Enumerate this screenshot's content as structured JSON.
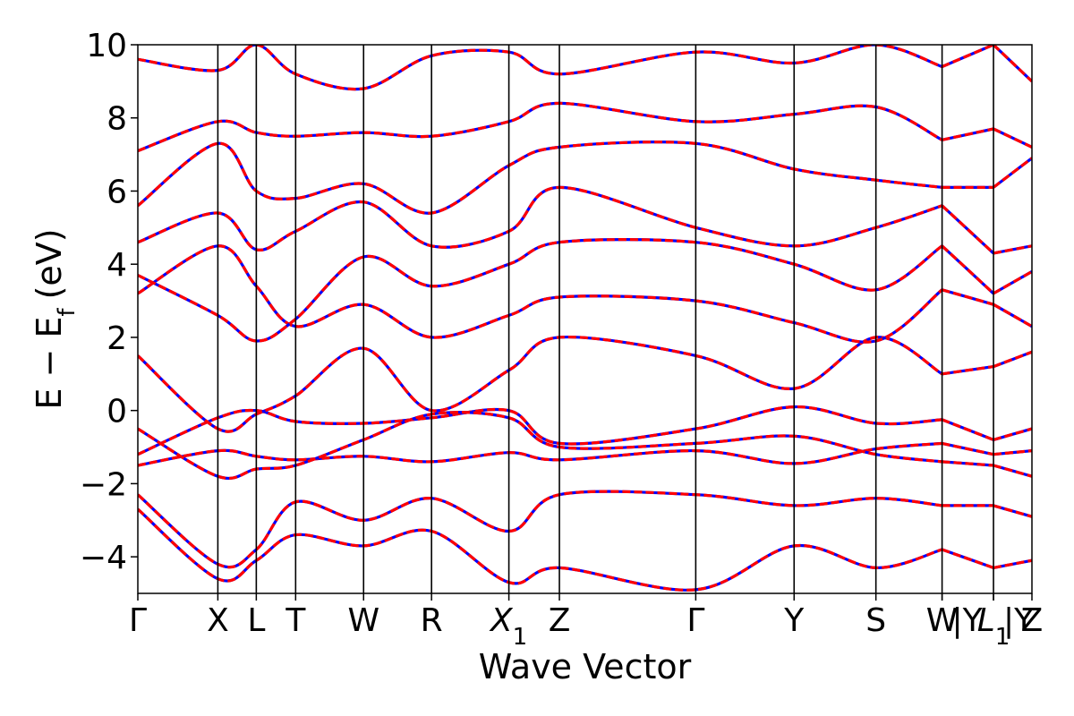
{
  "chart_data": {
    "type": "line",
    "title": "",
    "xlabel": "Wave Vector",
    "ylabel": "E − E",
    "ylabel_subscript": "f",
    "ylabel_unit": "(eV)",
    "ylim": [
      -5,
      10
    ],
    "yticks": [
      -4,
      -2,
      0,
      2,
      4,
      6,
      8,
      10
    ],
    "ytick_labels": [
      "−4",
      "−2",
      "0",
      "2",
      "4",
      "6",
      "8",
      "10"
    ],
    "xlim": [
      0,
      1
    ],
    "kpoints": [
      {
        "label": "Γ",
        "x": 0.0
      },
      {
        "label": "X",
        "x": 0.0895
      },
      {
        "label": "L",
        "x": 0.1325
      },
      {
        "label": "T",
        "x": 0.1765
      },
      {
        "label": "W",
        "x": 0.2525
      },
      {
        "label": "R",
        "x": 0.3285
      },
      {
        "label": "X",
        "sub": "1",
        "x": 0.415
      },
      {
        "label": "Z",
        "x": 0.4715
      },
      {
        "label": "Γ",
        "x": 0.624
      },
      {
        "label": "Y",
        "x": 0.734
      },
      {
        "label": "S",
        "x": 0.8255
      },
      {
        "label": "W",
        "x": 0.8995
      },
      {
        "label": "|Y",
        "x": 0.8995,
        "offset": true
      },
      {
        "label": "L",
        "sub": "1",
        "x": 0.957
      },
      {
        "label": "|Y",
        "x": 0.957,
        "offset": true
      },
      {
        "label": "Z",
        "x": 1.0
      }
    ],
    "segment_breaks": [
      0.8995,
      0.957
    ],
    "series": [
      {
        "color": "#0000ff",
        "style": "solid"
      },
      {
        "color": "#ff0000",
        "style": "dashed"
      }
    ],
    "bands": [
      {
        "E": [
          -1.2,
          -0.2,
          0.0,
          -0.3,
          -0.35,
          -0.2,
          0.0,
          -0.9,
          -0.5,
          0.1,
          -0.35,
          -0.25,
          -0.8,
          -0.5,
          -0.5,
          -0.4
        ]
      },
      {
        "E": [
          -1.5,
          -1.1,
          -1.25,
          -1.35,
          -1.25,
          -1.4,
          -1.15,
          -1.35,
          -1.1,
          -1.45,
          -1.05,
          -0.9,
          -1.2,
          -1.1,
          -1.3,
          -1.6
        ]
      },
      {
        "E": [
          -0.5,
          -1.8,
          -1.6,
          -1.5,
          -0.8,
          -0.1,
          -0.2,
          -1.0,
          -0.9,
          -0.7,
          -1.2,
          -1.4,
          -1.5,
          -1.8,
          -1.6,
          -1.0
        ]
      },
      {
        "E": [
          1.5,
          -0.5,
          -0.1,
          0.4,
          1.7,
          0.0,
          1.1,
          2.0,
          1.5,
          0.6,
          2.0,
          1.0,
          1.2,
          1.6,
          1.5,
          2.0
        ]
      },
      {
        "E": [
          -2.3,
          -4.2,
          -3.8,
          -2.5,
          -3.0,
          -2.4,
          -3.3,
          -2.3,
          -2.3,
          -2.6,
          -2.4,
          -2.6,
          -2.6,
          -2.9,
          -2.3,
          -2.4
        ]
      },
      {
        "E": [
          -2.7,
          -4.6,
          -4.1,
          -3.4,
          -3.7,
          -3.3,
          -4.7,
          -4.3,
          -4.9,
          -3.7,
          -4.3,
          -3.8,
          -4.3,
          -4.1,
          -4.3,
          -4.3
        ]
      },
      {
        "E": [
          3.2,
          4.5,
          3.4,
          2.3,
          2.9,
          2.0,
          2.6,
          3.1,
          3.0,
          2.4,
          1.9,
          3.3,
          2.9,
          2.3,
          2.6,
          3.0
        ]
      },
      {
        "E": [
          3.7,
          2.6,
          1.9,
          2.5,
          4.2,
          3.4,
          4.0,
          4.6,
          4.6,
          4.0,
          3.3,
          4.5,
          3.2,
          3.8,
          3.6,
          4.4
        ]
      },
      {
        "E": [
          4.6,
          5.4,
          4.4,
          4.9,
          5.7,
          4.5,
          4.9,
          6.1,
          5.0,
          4.5,
          5.0,
          5.6,
          4.3,
          4.5,
          4.2,
          4.6
        ]
      },
      {
        "E": [
          5.6,
          7.3,
          6.0,
          5.8,
          6.2,
          5.4,
          6.7,
          7.2,
          7.3,
          6.6,
          6.3,
          6.1,
          6.1,
          6.9,
          6.7,
          6.7
        ]
      },
      {
        "E": [
          7.1,
          7.9,
          7.6,
          7.5,
          7.6,
          7.5,
          7.9,
          8.4,
          7.9,
          8.1,
          8.3,
          7.4,
          7.7,
          7.2,
          7.0,
          7.2
        ]
      },
      {
        "E": [
          9.6,
          9.3,
          10.0,
          9.2,
          8.8,
          9.7,
          9.8,
          9.2,
          9.8,
          9.5,
          10.0,
          9.4,
          10.0,
          9.0,
          9.7,
          9.6
        ]
      }
    ]
  }
}
